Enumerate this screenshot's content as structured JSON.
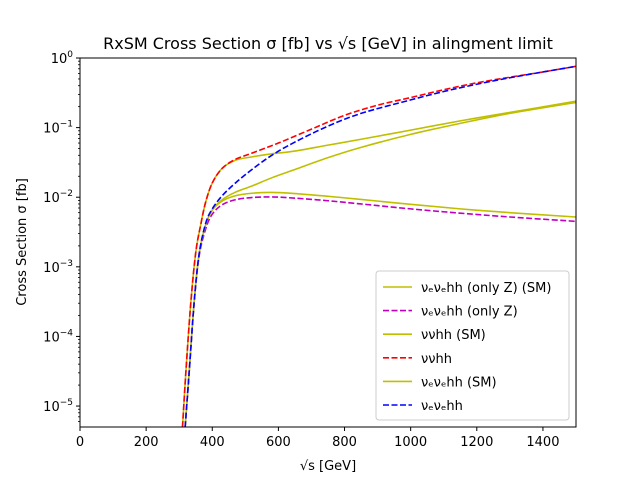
{
  "chart_data": {
    "type": "line",
    "title": "RxSM Cross Section σ [fb] vs √s [GeV] in alingment limit",
    "xlabel": "√s [GeV]",
    "ylabel": "Cross Section σ [fb]",
    "xlim": [
      0,
      1500
    ],
    "ylim": [
      5e-06,
      1
    ],
    "yscale": "log",
    "grid": false,
    "legend_position": "lower-right",
    "x_ticks": [
      0,
      200,
      400,
      600,
      800,
      1000,
      1200,
      1400
    ],
    "y_ticks": [
      {
        "value": 1e-05,
        "base": "10",
        "exp": "−5"
      },
      {
        "value": 0.0001,
        "base": "10",
        "exp": "−4"
      },
      {
        "value": 0.001,
        "base": "10",
        "exp": "−3"
      },
      {
        "value": 0.01,
        "base": "10",
        "exp": "−2"
      },
      {
        "value": 0.1,
        "base": "10",
        "exp": "−1"
      },
      {
        "value": 1,
        "base": "10",
        "exp": "0"
      }
    ],
    "series": [
      {
        "name": "νₑνₑhh (only Z) (SM)",
        "color": "#bfbf00",
        "style": "solid",
        "x": [
          318,
          330,
          345,
          360,
          380,
          400,
          430,
          470,
          520,
          580,
          650,
          750,
          850,
          1000,
          1150,
          1300,
          1500
        ],
        "y": [
          5e-06,
          3e-05,
          0.0003,
          0.0015,
          0.004,
          0.0065,
          0.0088,
          0.0105,
          0.0114,
          0.0117,
          0.0113,
          0.0103,
          0.0093,
          0.0079,
          0.0068,
          0.006,
          0.0052
        ]
      },
      {
        "name": "νₑνₑhh (only Z)",
        "color": "#bf00bf",
        "style": "dashed",
        "x": [
          318,
          330,
          345,
          360,
          380,
          400,
          430,
          470,
          520,
          580,
          650,
          750,
          850,
          1000,
          1150,
          1300,
          1500
        ],
        "y": [
          5e-06,
          3e-05,
          0.0003,
          0.0014,
          0.0035,
          0.0057,
          0.0078,
          0.0092,
          0.0099,
          0.0101,
          0.0097,
          0.0089,
          0.008,
          0.0068,
          0.0059,
          0.0052,
          0.0045
        ]
      },
      {
        "name": "ννhh (SM)",
        "color": "#bfbf00",
        "style": "solid",
        "x": [
          310,
          320,
          335,
          350,
          365,
          380,
          400,
          430,
          470,
          520,
          580,
          650,
          750,
          850,
          1000,
          1150,
          1300,
          1500
        ],
        "y": [
          5e-06,
          3e-05,
          0.0003,
          0.0016,
          0.004,
          0.0085,
          0.016,
          0.026,
          0.034,
          0.038,
          0.042,
          0.046,
          0.056,
          0.068,
          0.092,
          0.125,
          0.165,
          0.24
        ]
      },
      {
        "name": "ννhh",
        "color": "#ff0000",
        "style": "dashed",
        "x": [
          310,
          320,
          335,
          350,
          365,
          380,
          400,
          430,
          470,
          520,
          600,
          700,
          800,
          900,
          1000,
          1100,
          1200,
          1300,
          1400,
          1500
        ],
        "y": [
          5e-06,
          3e-05,
          0.0003,
          0.0016,
          0.004,
          0.0085,
          0.016,
          0.026,
          0.035,
          0.043,
          0.06,
          0.095,
          0.15,
          0.21,
          0.27,
          0.35,
          0.44,
          0.53,
          0.63,
          0.76
        ]
      },
      {
        "name": "νₑνₑhh (SM)",
        "color": "#bfbf00",
        "style": "solid",
        "x": [
          318,
          330,
          345,
          360,
          380,
          400,
          430,
          470,
          520,
          580,
          650,
          750,
          850,
          1000,
          1150,
          1300,
          1500
        ],
        "y": [
          5e-06,
          3e-05,
          0.0003,
          0.0015,
          0.004,
          0.0066,
          0.0092,
          0.0118,
          0.0145,
          0.019,
          0.025,
          0.037,
          0.052,
          0.08,
          0.115,
          0.16,
          0.23
        ]
      },
      {
        "name": "νₑνₑhh",
        "color": "#0000ff",
        "style": "dashed",
        "x": [
          318,
          330,
          345,
          360,
          380,
          400,
          430,
          470,
          520,
          580,
          650,
          750,
          850,
          1000,
          1100,
          1200,
          1300,
          1400,
          1500
        ],
        "y": [
          5e-06,
          3e-05,
          0.0003,
          0.0015,
          0.0042,
          0.0068,
          0.0105,
          0.016,
          0.025,
          0.04,
          0.062,
          0.105,
          0.16,
          0.25,
          0.33,
          0.42,
          0.52,
          0.63,
          0.76
        ]
      }
    ]
  }
}
